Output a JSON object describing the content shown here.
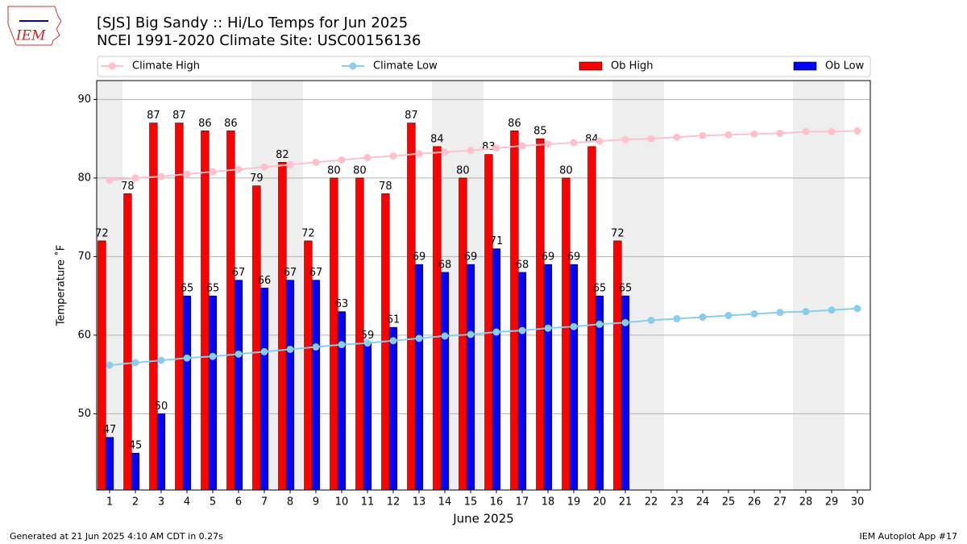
{
  "chart_data": {
    "type": "bar",
    "title": "[SJS] Big Sandy :: Hi/Lo Temps for Jun 2025",
    "subtitle": "NCEI 1991-2020 Climate Site: USC00156136",
    "logo_text": "IEM",
    "xlabel": "June 2025",
    "ylabel": "Temperature ˚F",
    "footer_left": "Generated at 21 Jun 2025 4:10 AM CDT in 0.27s",
    "footer_right": "IEM Autoplot App #17",
    "x": [
      1,
      2,
      3,
      4,
      5,
      6,
      7,
      8,
      9,
      10,
      11,
      12,
      13,
      14,
      15,
      16,
      17,
      18,
      19,
      20,
      21,
      22,
      23,
      24,
      25,
      26,
      27,
      28,
      29,
      30
    ],
    "xlim": [
      0.5,
      30.5
    ],
    "xticks": [
      1,
      2,
      3,
      4,
      5,
      6,
      7,
      8,
      9,
      10,
      11,
      12,
      13,
      14,
      15,
      16,
      17,
      18,
      19,
      20,
      21,
      22,
      23,
      24,
      25,
      26,
      27,
      28,
      29,
      30
    ],
    "ylim": [
      40.3,
      92.4
    ],
    "yticks": [
      50,
      60,
      70,
      80,
      90
    ],
    "grid": true,
    "legend": "top",
    "highlight_days": [
      1,
      7,
      8,
      14,
      15,
      21,
      22,
      28,
      29
    ],
    "highlight_color": "#eeeeee",
    "series": [
      {
        "name": "Climate High",
        "type": "line",
        "color": "#ffc0cb",
        "values": [
          79.7,
          80.0,
          80.2,
          80.5,
          80.8,
          81.1,
          81.4,
          81.7,
          82.0,
          82.3,
          82.6,
          82.8,
          83.1,
          83.3,
          83.5,
          83.8,
          84.1,
          84.3,
          84.5,
          84.7,
          84.9,
          85.0,
          85.2,
          85.4,
          85.5,
          85.6,
          85.7,
          85.9,
          85.9,
          86.0
        ]
      },
      {
        "name": "Climate Low",
        "type": "line",
        "color": "#87ceeb",
        "values": [
          56.2,
          56.5,
          56.8,
          57.1,
          57.3,
          57.6,
          57.9,
          58.2,
          58.5,
          58.8,
          59.0,
          59.3,
          59.6,
          59.9,
          60.1,
          60.4,
          60.6,
          60.9,
          61.1,
          61.4,
          61.6,
          61.9,
          62.1,
          62.3,
          62.5,
          62.7,
          62.9,
          63.0,
          63.2,
          63.4
        ]
      },
      {
        "name": "Ob High",
        "type": "bar",
        "color": "#ff0000",
        "values": [
          72,
          78,
          87,
          87,
          86,
          86,
          79,
          82,
          72,
          80,
          80,
          78,
          87,
          84,
          80,
          83,
          86,
          85,
          80,
          84,
          72,
          null,
          null,
          null,
          null,
          null,
          null,
          null,
          null,
          null
        ]
      },
      {
        "name": "Ob Low",
        "type": "bar",
        "color": "#0000ff",
        "values": [
          47,
          45,
          50,
          65,
          65,
          67,
          66,
          67,
          67,
          63,
          59,
          61,
          69,
          68,
          69,
          71,
          68,
          69,
          69,
          65,
          65,
          null,
          null,
          null,
          null,
          null,
          null,
          null,
          null,
          null
        ]
      }
    ]
  }
}
